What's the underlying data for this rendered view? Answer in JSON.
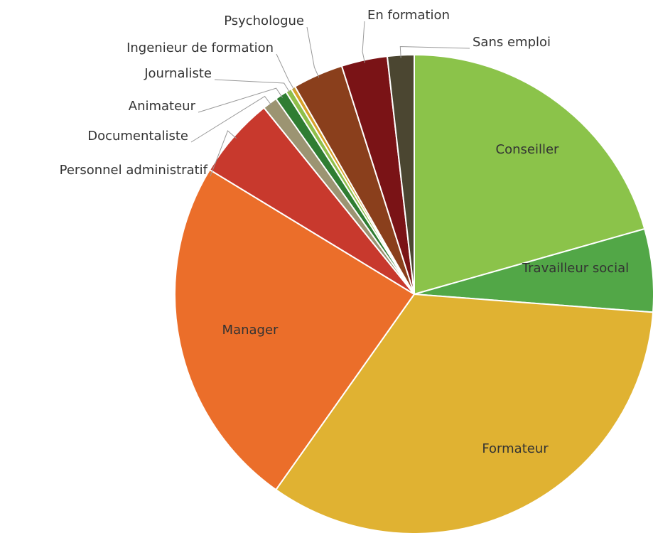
{
  "chart_data": {
    "type": "pie",
    "categories": [
      "Conseiller",
      "Travailleur social",
      "Formateur",
      "Manager",
      "Personnel administratif",
      "Documentaliste",
      "Animateur",
      "Journaliste",
      "Ingenieur de formation",
      "Psychologue",
      "En formation",
      "Sans emploi"
    ],
    "values": [
      20.6,
      5.6,
      33.6,
      23.9,
      5.5,
      1.0,
      0.8,
      0.4,
      0.3,
      3.4,
      3.1,
      1.8
    ],
    "colors": [
      "#8bc34a",
      "#52a747",
      "#e0b232",
      "#eb6e2a",
      "#c8392d",
      "#9c9472",
      "#2f7d32",
      "#8fbf4a",
      "#d7a22a",
      "#8a3f1c",
      "#7a1316",
      "#4b4631"
    ]
  }
}
